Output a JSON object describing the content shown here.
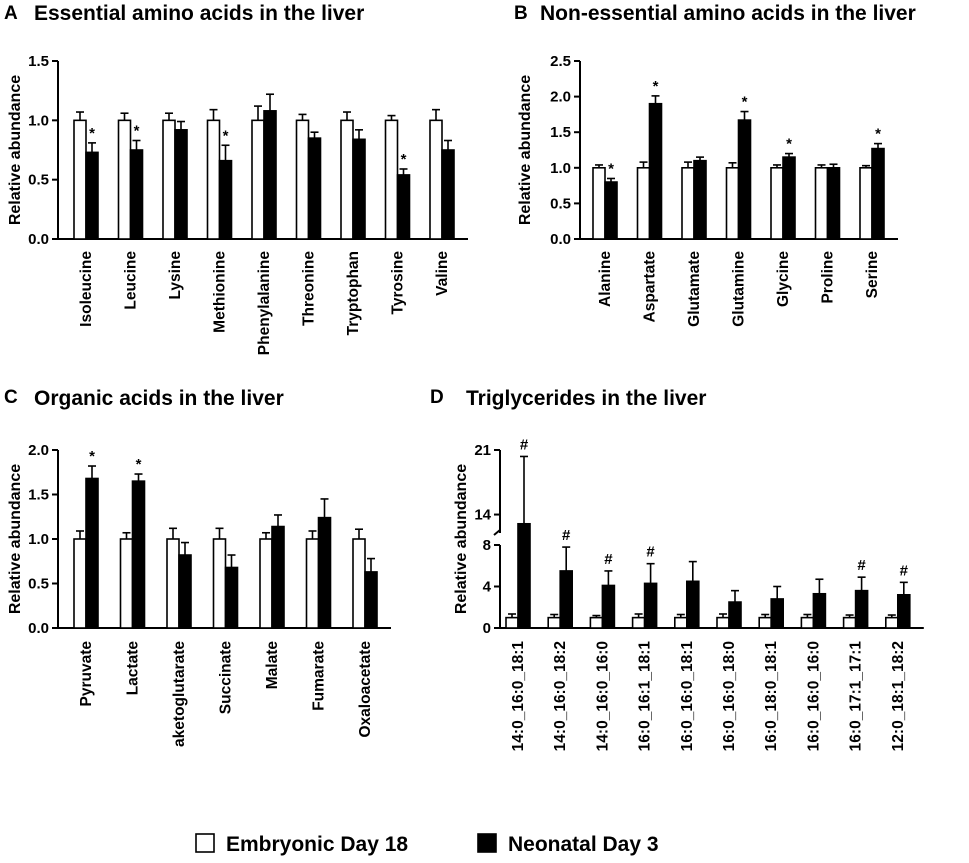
{
  "legend": [
    {
      "label": "Embryonic Day 18",
      "color": "#ffffff"
    },
    {
      "label": "Neonatal Day 3",
      "color": "#000000"
    }
  ],
  "chart_data": [
    {
      "panel": "A",
      "type": "bar",
      "title": "Essential amino acids in the liver",
      "ylabel": "Relative abundance",
      "ylim": [
        0,
        1.5
      ],
      "yticks": [
        "0.0",
        "0.5",
        "1.0",
        "1.5"
      ],
      "categories": [
        "Isoleucine",
        "Leucine",
        "Lysine",
        "Methionine",
        "Phenylalanine",
        "Threonine",
        "Tryptophan",
        "Tyrosine",
        "Valine"
      ],
      "series": [
        {
          "name": "Embryonic Day 18",
          "values": [
            1.0,
            1.0,
            1.0,
            1.0,
            1.0,
            1.0,
            1.0,
            1.0,
            1.0
          ],
          "errors": [
            0.07,
            0.06,
            0.06,
            0.09,
            0.12,
            0.05,
            0.07,
            0.04,
            0.09
          ]
        },
        {
          "name": "Neonatal Day 3",
          "values": [
            0.73,
            0.75,
            0.92,
            0.66,
            1.08,
            0.85,
            0.84,
            0.54,
            0.75
          ],
          "errors": [
            0.08,
            0.08,
            0.07,
            0.13,
            0.14,
            0.05,
            0.08,
            0.05,
            0.08
          ]
        }
      ],
      "marks": [
        "*",
        "*",
        "",
        "*",
        "",
        "",
        "",
        "*",
        ""
      ]
    },
    {
      "panel": "B",
      "type": "bar",
      "title": "Non-essential amino acids in the liver",
      "ylabel": "Relative abundance",
      "ylim": [
        0,
        2.5
      ],
      "yticks": [
        "0.0",
        "0.5",
        "1.0",
        "1.5",
        "2.0",
        "2.5"
      ],
      "categories": [
        "Alanine",
        "Aspartate",
        "Glutamate",
        "Glutamine",
        "Glycine",
        "Proline",
        "Serine"
      ],
      "series": [
        {
          "name": "Embryonic Day 18",
          "values": [
            1.0,
            1.0,
            1.0,
            1.0,
            1.0,
            1.0,
            1.0
          ],
          "errors": [
            0.04,
            0.08,
            0.08,
            0.07,
            0.04,
            0.04,
            0.03
          ]
        },
        {
          "name": "Neonatal Day 3",
          "values": [
            0.8,
            1.9,
            1.1,
            1.67,
            1.15,
            1.0,
            1.27
          ],
          "errors": [
            0.05,
            0.11,
            0.05,
            0.12,
            0.05,
            0.05,
            0.07
          ]
        }
      ],
      "marks": [
        "*",
        "*",
        "",
        "*",
        "*",
        "",
        "*"
      ]
    },
    {
      "panel": "C",
      "type": "bar",
      "title": "Organic acids in the liver",
      "ylabel": "Relative abundance",
      "ylim": [
        0,
        2.0
      ],
      "yticks": [
        "0.0",
        "0.5",
        "1.0",
        "1.5",
        "2.0"
      ],
      "categories": [
        "Pyruvate",
        "Lactate",
        "aketoglutarate",
        "Succinate",
        "Malate",
        "Fumarate",
        "Oxaloacetate"
      ],
      "series": [
        {
          "name": "Embryonic Day 18",
          "values": [
            1.0,
            1.0,
            1.0,
            1.0,
            1.0,
            1.0,
            1.0
          ],
          "errors": [
            0.09,
            0.07,
            0.12,
            0.12,
            0.07,
            0.09,
            0.11
          ]
        },
        {
          "name": "Neonatal Day 3",
          "values": [
            1.68,
            1.65,
            0.82,
            0.68,
            1.14,
            1.24,
            0.63
          ],
          "errors": [
            0.14,
            0.08,
            0.14,
            0.14,
            0.13,
            0.21,
            0.15
          ]
        }
      ],
      "marks": [
        "*",
        "*",
        "",
        "",
        "",
        "",
        ""
      ]
    },
    {
      "panel": "D",
      "type": "bar",
      "title": "Triglycerides in the liver",
      "ylabel": "Relative abundance",
      "ylim": [
        0,
        21
      ],
      "axis_break": [
        8,
        12
      ],
      "yticks": [
        "0",
        "4",
        "8",
        "14",
        "21"
      ],
      "categories": [
        "14:0_16:0_18:1",
        "14:0_16:0_18:2",
        "14:0_16:0_16:0",
        "16:0_16:1_18:1",
        "16:0_16:0_18:1",
        "16:0_16:0_18:0",
        "16:0_18:0_18:1",
        "16:0_16:0_16:0",
        "16:0_17:1_17:1",
        "12:0_18:1_18:2"
      ],
      "series": [
        {
          "name": "Embryonic Day 18",
          "values": [
            1.0,
            1.0,
            1.0,
            1.0,
            1.0,
            1.0,
            1.0,
            1.0,
            1.0,
            1.0
          ],
          "errors": [
            0.35,
            0.3,
            0.2,
            0.35,
            0.3,
            0.35,
            0.3,
            0.3,
            0.25,
            0.25
          ]
        },
        {
          "name": "Neonatal Day 3",
          "values": [
            13.0,
            5.5,
            4.1,
            4.3,
            4.5,
            2.5,
            2.8,
            3.3,
            3.6,
            3.2
          ],
          "errors": [
            7.3,
            2.3,
            1.4,
            1.9,
            1.9,
            1.1,
            1.2,
            1.4,
            1.3,
            1.2
          ]
        }
      ],
      "marks": [
        "#",
        "#",
        "#",
        "#",
        "",
        "",
        "",
        "",
        "#",
        "#"
      ]
    }
  ]
}
